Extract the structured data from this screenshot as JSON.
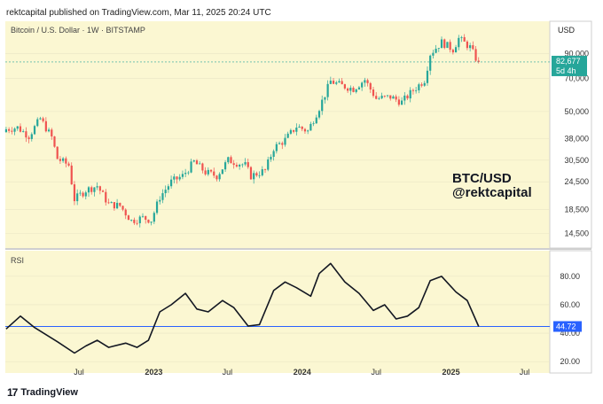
{
  "header": {
    "published_by": "rektcapital published on TradingView.com, Mar 11, 2025 20:24 UTC"
  },
  "currency": "USD",
  "watermark": {
    "line1": "BTC/USD",
    "line2": "@rektcapital"
  },
  "footer": {
    "brand": "TradingView",
    "logo_glyph": "17"
  },
  "colors": {
    "background": "#fbf7d2",
    "up": "#26a69a",
    "down": "#ef5350",
    "rsi_line": "#131722",
    "rsi_level": "#2962ff",
    "grid": "#e9e6c4",
    "last_price_bg": "#26a69a",
    "rsi_badge_bg": "#2962ff"
  },
  "chart_data": [
    {
      "type": "candlestick",
      "title": "Bitcoin / U.S. Dollar · 1W · BITSTAMP",
      "ylabel": "USD",
      "y_scale": "log",
      "y_ticks": [
        14500,
        18500,
        24500,
        30500,
        38000,
        50000,
        70000,
        90000
      ],
      "y_tick_labels": [
        "14,500",
        "18,500",
        "24,500",
        "30,500",
        "38,000",
        "50,000",
        "70,000",
        "90,000"
      ],
      "last_price": "82,677",
      "last_price_countdown": "5d 4h",
      "x_ticks": [
        {
          "label": "Jul",
          "date": "2022-07-01"
        },
        {
          "label": "2023",
          "date": "2023-01-01"
        },
        {
          "label": "Jul",
          "date": "2023-07-01"
        },
        {
          "label": "2024",
          "date": "2024-01-01"
        },
        {
          "label": "Jul",
          "date": "2024-07-01"
        },
        {
          "label": "2025",
          "date": "2025-01-01"
        },
        {
          "label": "Jul",
          "date": "2025-07-01"
        }
      ],
      "x_range": [
        "2022-01-01",
        "2025-09-01"
      ],
      "closes": [
        {
          "date": "2022-01-03",
          "close": 41800
        },
        {
          "date": "2022-01-31",
          "close": 42500
        },
        {
          "date": "2022-02-28",
          "close": 39000
        },
        {
          "date": "2022-03-28",
          "close": 46500
        },
        {
          "date": "2022-04-25",
          "close": 38500
        },
        {
          "date": "2022-05-09",
          "close": 31000
        },
        {
          "date": "2022-06-06",
          "close": 29000
        },
        {
          "date": "2022-06-20",
          "close": 20500
        },
        {
          "date": "2022-07-18",
          "close": 22500
        },
        {
          "date": "2022-08-15",
          "close": 23500
        },
        {
          "date": "2022-09-12",
          "close": 19500
        },
        {
          "date": "2022-10-10",
          "close": 19200
        },
        {
          "date": "2022-11-07",
          "close": 16500
        },
        {
          "date": "2022-12-05",
          "close": 17000
        },
        {
          "date": "2022-12-26",
          "close": 16600
        },
        {
          "date": "2023-01-16",
          "close": 21000
        },
        {
          "date": "2023-02-13",
          "close": 24500
        },
        {
          "date": "2023-03-13",
          "close": 26000
        },
        {
          "date": "2023-04-10",
          "close": 30000
        },
        {
          "date": "2023-05-08",
          "close": 27000
        },
        {
          "date": "2023-06-05",
          "close": 26000
        },
        {
          "date": "2023-07-03",
          "close": 30500
        },
        {
          "date": "2023-08-14",
          "close": 29000
        },
        {
          "date": "2023-08-28",
          "close": 26000
        },
        {
          "date": "2023-10-02",
          "close": 27500
        },
        {
          "date": "2023-10-23",
          "close": 34500
        },
        {
          "date": "2023-11-20",
          "close": 37500
        },
        {
          "date": "2023-12-18",
          "close": 43000
        },
        {
          "date": "2024-01-15",
          "close": 41000
        },
        {
          "date": "2024-02-12",
          "close": 52000
        },
        {
          "date": "2024-03-11",
          "close": 68000
        },
        {
          "date": "2024-04-08",
          "close": 65000
        },
        {
          "date": "2024-05-06",
          "close": 63000
        },
        {
          "date": "2024-06-03",
          "close": 69000
        },
        {
          "date": "2024-07-01",
          "close": 57000
        },
        {
          "date": "2024-08-05",
          "close": 58000
        },
        {
          "date": "2024-09-02",
          "close": 55000
        },
        {
          "date": "2024-09-30",
          "close": 62000
        },
        {
          "date": "2024-10-28",
          "close": 69000
        },
        {
          "date": "2024-11-11",
          "close": 90000
        },
        {
          "date": "2024-12-09",
          "close": 101000
        },
        {
          "date": "2025-01-06",
          "close": 94000
        },
        {
          "date": "2025-01-20",
          "close": 105000
        },
        {
          "date": "2025-02-17",
          "close": 96000
        },
        {
          "date": "2025-03-03",
          "close": 86000
        },
        {
          "date": "2025-03-10",
          "close": 82677
        }
      ]
    },
    {
      "type": "line",
      "title": "RSI",
      "y_ticks": [
        20,
        40,
        60,
        80
      ],
      "y_tick_labels": [
        "20.00",
        "40.00",
        "60.00",
        "80.00"
      ],
      "reference_level": 44.72,
      "reference_label": "44.72",
      "points": [
        {
          "date": "2022-01-03",
          "value": 43
        },
        {
          "date": "2022-02-07",
          "value": 52
        },
        {
          "date": "2022-03-14",
          "value": 44
        },
        {
          "date": "2022-05-09",
          "value": 34
        },
        {
          "date": "2022-06-20",
          "value": 26
        },
        {
          "date": "2022-07-18",
          "value": 31
        },
        {
          "date": "2022-08-15",
          "value": 35
        },
        {
          "date": "2022-09-12",
          "value": 30
        },
        {
          "date": "2022-10-24",
          "value": 33
        },
        {
          "date": "2022-11-21",
          "value": 30
        },
        {
          "date": "2022-12-19",
          "value": 35
        },
        {
          "date": "2023-01-16",
          "value": 55
        },
        {
          "date": "2023-02-13",
          "value": 60
        },
        {
          "date": "2023-03-20",
          "value": 68
        },
        {
          "date": "2023-04-17",
          "value": 57
        },
        {
          "date": "2023-05-15",
          "value": 55
        },
        {
          "date": "2023-06-19",
          "value": 63
        },
        {
          "date": "2023-07-17",
          "value": 58
        },
        {
          "date": "2023-08-21",
          "value": 45
        },
        {
          "date": "2023-09-18",
          "value": 46
        },
        {
          "date": "2023-10-23",
          "value": 70
        },
        {
          "date": "2023-11-20",
          "value": 76
        },
        {
          "date": "2023-12-18",
          "value": 72
        },
        {
          "date": "2024-01-22",
          "value": 66
        },
        {
          "date": "2024-02-12",
          "value": 82
        },
        {
          "date": "2024-03-11",
          "value": 89
        },
        {
          "date": "2024-04-15",
          "value": 76
        },
        {
          "date": "2024-05-20",
          "value": 68
        },
        {
          "date": "2024-06-24",
          "value": 56
        },
        {
          "date": "2024-07-22",
          "value": 60
        },
        {
          "date": "2024-08-19",
          "value": 50
        },
        {
          "date": "2024-09-16",
          "value": 52
        },
        {
          "date": "2024-10-14",
          "value": 58
        },
        {
          "date": "2024-11-11",
          "value": 77
        },
        {
          "date": "2024-12-09",
          "value": 80
        },
        {
          "date": "2025-01-13",
          "value": 69
        },
        {
          "date": "2025-02-10",
          "value": 63
        },
        {
          "date": "2025-03-10",
          "value": 44.72
        }
      ]
    }
  ]
}
